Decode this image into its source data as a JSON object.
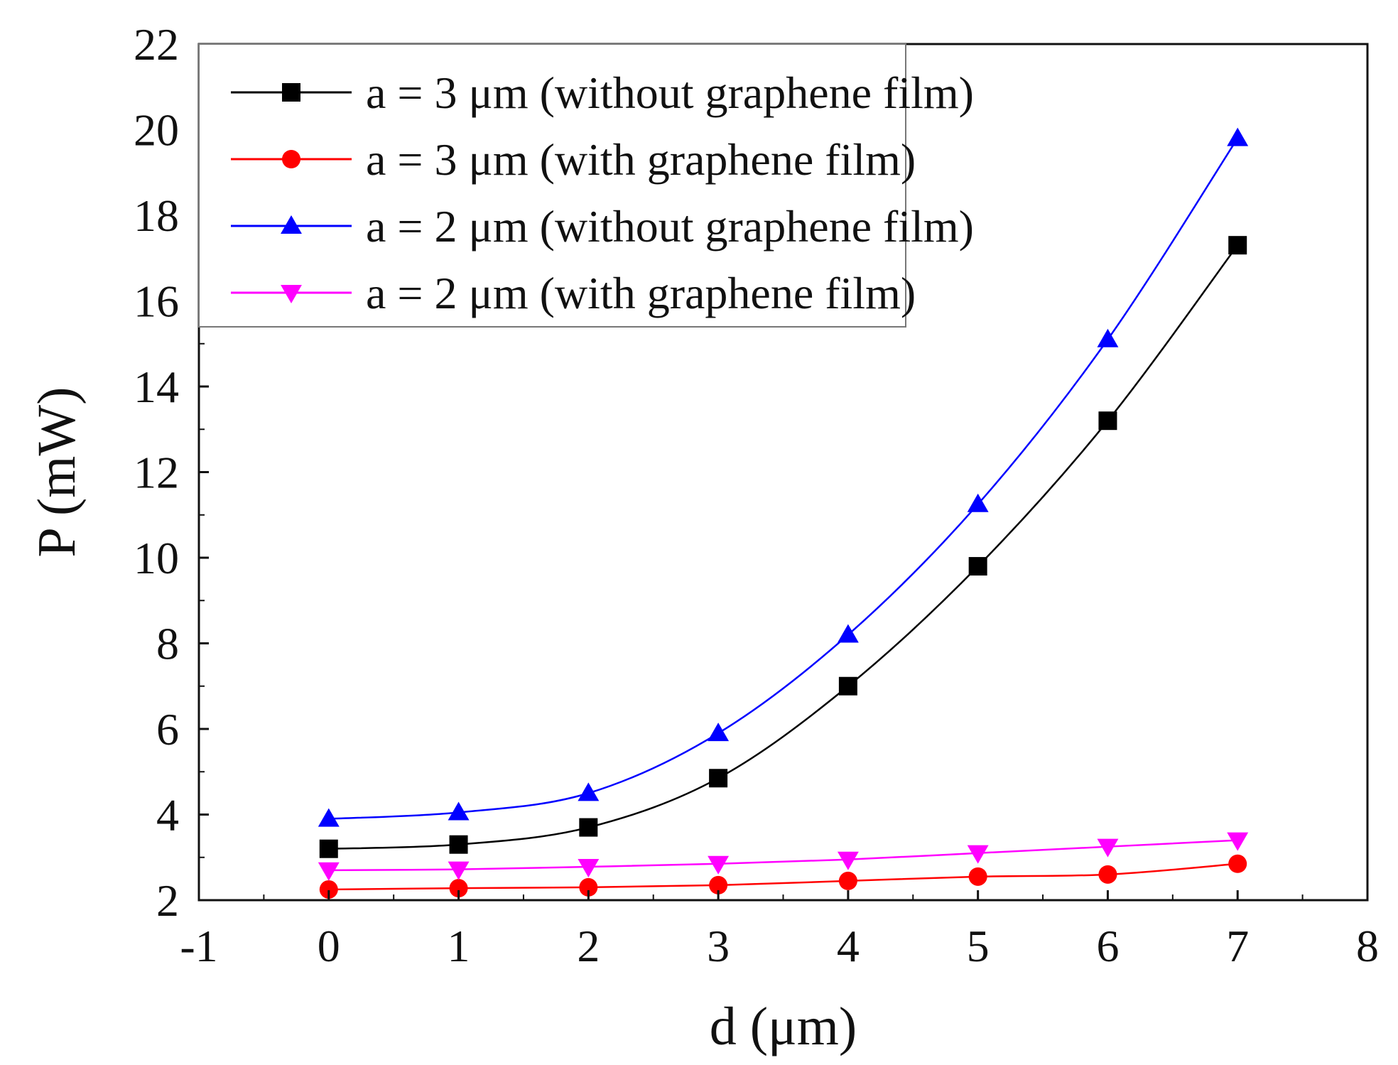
{
  "chart_data": {
    "type": "line",
    "title": "",
    "xlabel": "d (μm)",
    "ylabel": "P (mW)",
    "xlim": [
      -1,
      8
    ],
    "ylim": [
      2,
      22
    ],
    "xticks": [
      -1,
      0,
      1,
      2,
      3,
      4,
      5,
      6,
      7,
      8
    ],
    "yticks": [
      2,
      4,
      6,
      8,
      10,
      12,
      14,
      16,
      18,
      20,
      22
    ],
    "x": [
      0,
      1,
      2,
      3,
      4,
      5,
      6,
      7
    ],
    "legend_position": "top-left",
    "series": [
      {
        "name": "a = 3 μm (without graphene film)",
        "color": "#000000",
        "marker": "square",
        "values": [
          3.2,
          3.3,
          3.7,
          4.85,
          7.0,
          9.8,
          13.2,
          17.3
        ]
      },
      {
        "name": "a = 3 μm (with graphene film)",
        "color": "#ff0000",
        "marker": "circle",
        "values": [
          2.25,
          2.28,
          2.3,
          2.35,
          2.45,
          2.55,
          2.6,
          2.85
        ]
      },
      {
        "name": "a = 2 μm (without graphene film)",
        "color": "#0000ff",
        "marker": "triangle-up",
        "values": [
          3.9,
          4.05,
          4.5,
          5.9,
          8.2,
          11.25,
          15.1,
          19.8
        ]
      },
      {
        "name": "a = 2 μm (with graphene film)",
        "color": "#ff00ff",
        "marker": "triangle-down",
        "values": [
          2.7,
          2.72,
          2.78,
          2.85,
          2.95,
          3.1,
          3.25,
          3.4
        ]
      }
    ]
  }
}
